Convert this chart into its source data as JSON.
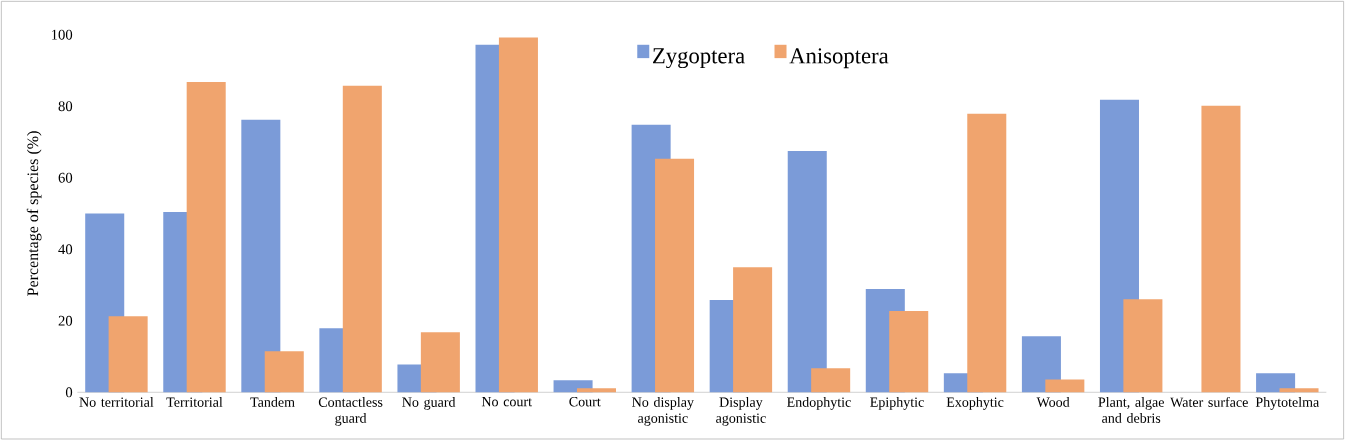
{
  "chart_data": {
    "type": "bar",
    "ylabel": "Percentage of species (%)",
    "categories": [
      "No territorial",
      "Territorial",
      "Tandem",
      "Contactless guard",
      "No guard",
      "No court",
      "Court",
      "No display agonistic",
      "Display agonistic",
      "Endophytic",
      "Epiphytic",
      "Exophytic",
      "Wood",
      "Plant, algae and debris",
      "Water surface",
      "Phytotelma"
    ],
    "series": [
      {
        "name": "Zygoptera",
        "color": "#7b9bd8",
        "values": [
          50,
          50.4,
          76.2,
          17.9,
          7.8,
          97.2,
          3.4,
          74.8,
          25.8,
          67.5,
          28.9,
          5.3,
          15.7,
          81.8,
          0,
          5.3
        ]
      },
      {
        "name": "Anisoptera",
        "color": "#f0a46e",
        "values": [
          21.3,
          86.8,
          11.5,
          85.7,
          16.8,
          99.2,
          1.1,
          65.3,
          35,
          6.7,
          22.7,
          77.9,
          3.6,
          26,
          80.1,
          1.1
        ]
      }
    ],
    "ylim": [
      0,
      100
    ],
    "yticks": [
      0,
      20,
      40,
      60,
      80,
      100
    ],
    "legend": "top"
  }
}
